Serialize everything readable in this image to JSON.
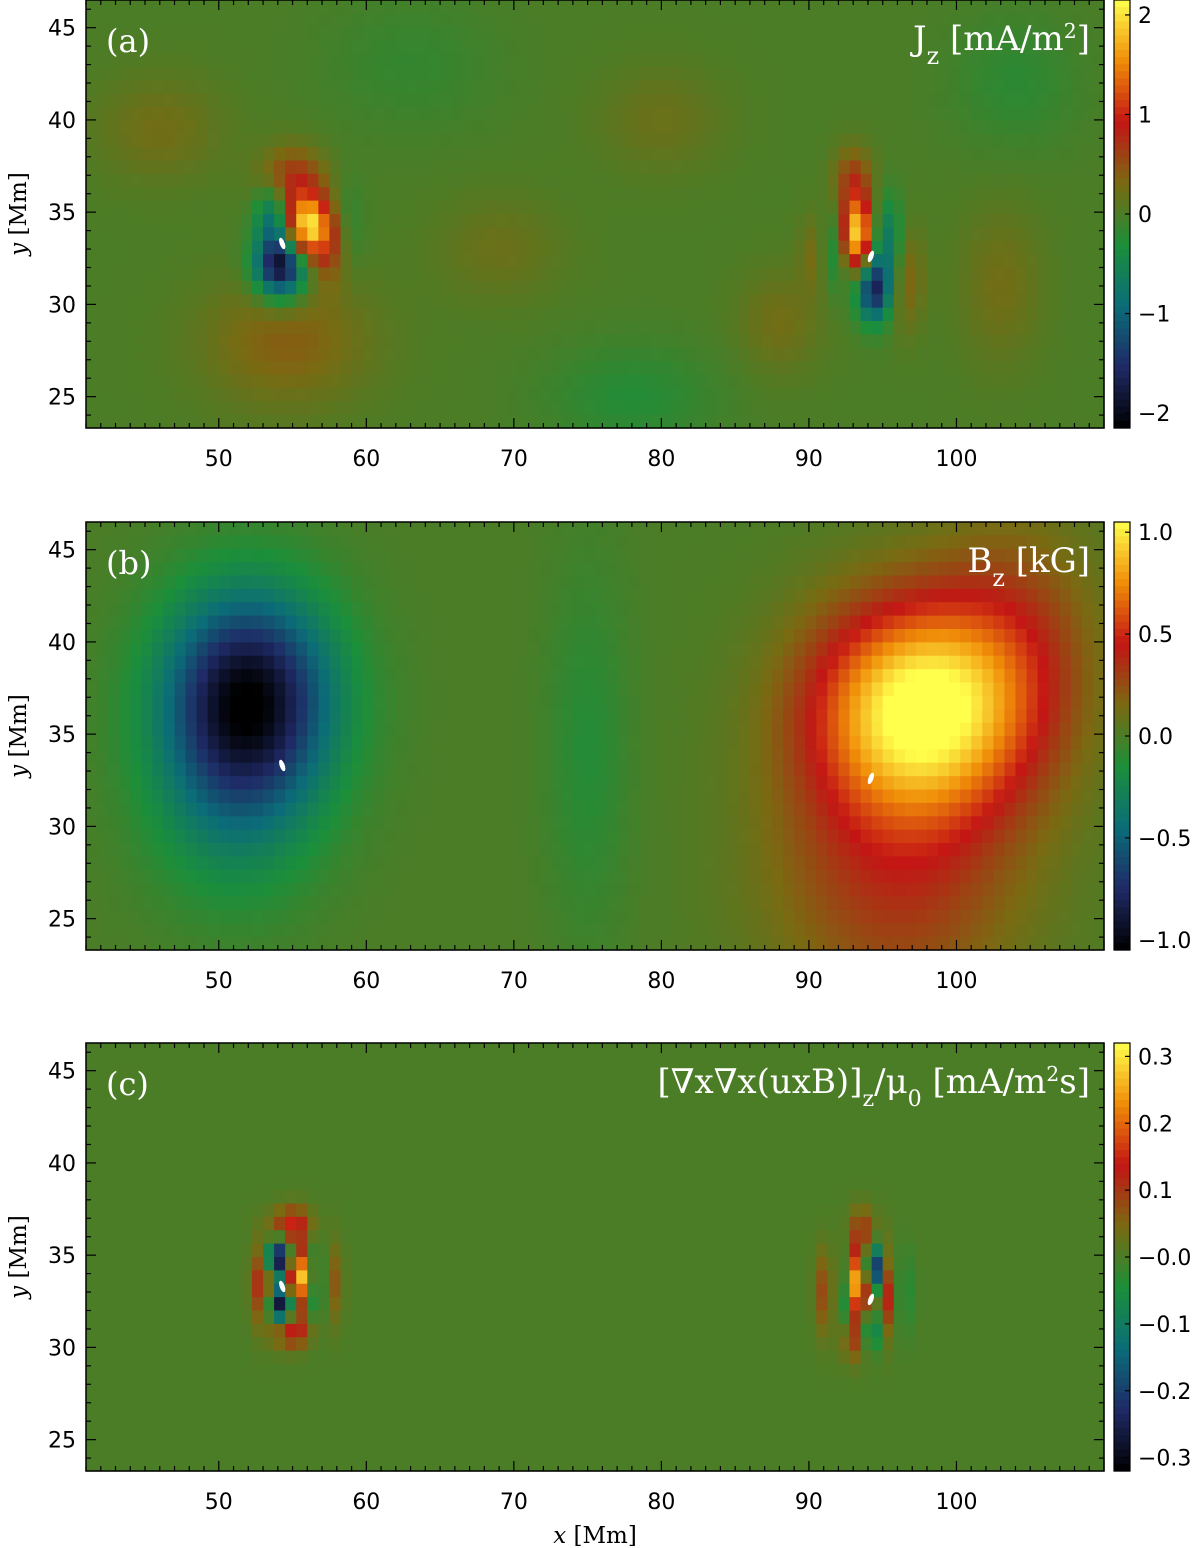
{
  "chart_data": [
    {
      "type": "heatmap",
      "panel_label": "(a)",
      "quantity_label": "J_z [mA/m²]",
      "xlim": [
        41,
        110
      ],
      "ylim": [
        23.3,
        46.5
      ],
      "x_ticks": [
        50,
        60,
        70,
        80,
        90,
        100
      ],
      "y_ticks": [
        25,
        30,
        35,
        40,
        45
      ],
      "xlabel": "",
      "ylabel": "y [Mm]",
      "colorbar": {
        "range": [
          -2.15,
          2.15
        ],
        "ticks": [
          "2",
          "1",
          "0",
          "−1",
          "−2"
        ],
        "tick_values": [
          2,
          1,
          0,
          -1,
          -2
        ]
      },
      "features": [
        {
          "x": 56.0,
          "y": 34.2,
          "value": 2.0,
          "sx": 1.0,
          "sy": 1.2
        },
        {
          "x": 54.2,
          "y": 32.1,
          "value": -2.0,
          "sx": 1.2,
          "sy": 1.2
        },
        {
          "x": 55.0,
          "y": 36.8,
          "value": 0.7,
          "sx": 1.5,
          "sy": 1.2
        },
        {
          "x": 53.6,
          "y": 34.8,
          "value": -0.8,
          "sx": 0.8,
          "sy": 1.2
        },
        {
          "x": 57.6,
          "y": 33.2,
          "value": 0.6,
          "sx": 0.9,
          "sy": 1.5
        },
        {
          "x": 58.6,
          "y": 34.0,
          "value": -0.3,
          "sx": 0.8,
          "sy": 1.8
        },
        {
          "x": 54.6,
          "y": 28.0,
          "value": 0.4,
          "sx": 4.0,
          "sy": 2.5
        },
        {
          "x": 93.3,
          "y": 33.8,
          "value": 2.0,
          "sx": 0.8,
          "sy": 1.4
        },
        {
          "x": 94.4,
          "y": 30.8,
          "value": -1.6,
          "sx": 0.8,
          "sy": 1.2
        },
        {
          "x": 95.2,
          "y": 33.5,
          "value": -0.8,
          "sx": 0.8,
          "sy": 1.6
        },
        {
          "x": 93.0,
          "y": 36.8,
          "value": 0.6,
          "sx": 0.9,
          "sy": 1.2
        },
        {
          "x": 91.8,
          "y": 33.0,
          "value": -0.5,
          "sx": 0.7,
          "sy": 1.5
        },
        {
          "x": 96.6,
          "y": 31.5,
          "value": 0.4,
          "sx": 0.8,
          "sy": 2.0
        },
        {
          "x": 90.4,
          "y": 32.8,
          "value": 0.3,
          "sx": 0.7,
          "sy": 1.5
        },
        {
          "x": 46.0,
          "y": 39.5,
          "value": 0.25,
          "sx": 3.0,
          "sy": 2.0
        },
        {
          "x": 69.0,
          "y": 33.0,
          "value": 0.2,
          "sx": 3.0,
          "sy": 2.0
        },
        {
          "x": 80.0,
          "y": 40.0,
          "value": 0.2,
          "sx": 3.0,
          "sy": 2.0
        },
        {
          "x": 103.0,
          "y": 31.0,
          "value": 0.25,
          "sx": 2.0,
          "sy": 3.0
        },
        {
          "x": 104.0,
          "y": 42.0,
          "value": -0.2,
          "sx": 3.0,
          "sy": 2.5
        },
        {
          "x": 78.0,
          "y": 25.0,
          "value": -0.25,
          "sx": 4.0,
          "sy": 2.0
        },
        {
          "x": 88.0,
          "y": 29.0,
          "value": 0.25,
          "sx": 2.0,
          "sy": 2.0
        },
        {
          "x": 63.0,
          "y": 43.0,
          "value": -0.15,
          "sx": 4.0,
          "sy": 2.5
        }
      ]
    },
    {
      "type": "heatmap",
      "panel_label": "(b)",
      "quantity_label": "B_z [kG]",
      "xlim": [
        41,
        110
      ],
      "ylim": [
        23.3,
        46.5
      ],
      "x_ticks": [
        50,
        60,
        70,
        80,
        90,
        100
      ],
      "y_ticks": [
        25,
        30,
        35,
        40,
        45
      ],
      "xlabel": "",
      "ylabel": "y [Mm]",
      "colorbar": {
        "range": [
          -1.05,
          1.05
        ],
        "ticks": [
          "1.0",
          "0.5",
          "0.0",
          "−0.5",
          "−1.0"
        ],
        "tick_values": [
          1.0,
          0.5,
          0.0,
          -0.5,
          -1.0
        ]
      },
      "features": [
        {
          "x": 52.0,
          "y": 37.0,
          "value": -1.0,
          "sx": 4.0,
          "sy": 4.0
        },
        {
          "x": 51.0,
          "y": 31.0,
          "value": -0.25,
          "sx": 4.0,
          "sy": 4.0
        },
        {
          "x": 97.5,
          "y": 36.5,
          "value": 1.0,
          "sx": 5.0,
          "sy": 4.0
        },
        {
          "x": 96.0,
          "y": 28.0,
          "value": 0.35,
          "sx": 6.0,
          "sy": 6.0
        },
        {
          "x": 104.0,
          "y": 40.0,
          "value": 0.25,
          "sx": 4.0,
          "sy": 5.0
        },
        {
          "x": 75.0,
          "y": 34.0,
          "value": -0.12,
          "sx": 2.0,
          "sy": 7.0
        }
      ]
    },
    {
      "type": "heatmap",
      "panel_label": "(c)",
      "quantity_label": "[∇x∇x(uxB)]_z/μ₀ [mA/m²s]",
      "xlim": [
        41,
        110
      ],
      "ylim": [
        23.3,
        46.5
      ],
      "x_ticks": [
        50,
        60,
        70,
        80,
        90,
        100
      ],
      "y_ticks": [
        25,
        30,
        35,
        40,
        45
      ],
      "xlabel": "x [Mm]",
      "ylabel": "y [Mm]",
      "colorbar": {
        "range": [
          -0.32,
          0.32
        ],
        "ticks": [
          "0.3",
          "0.2",
          "0.1",
          "−0.0",
          "−0.1",
          "−0.2",
          "−0.3"
        ],
        "tick_values": [
          0.3,
          0.2,
          0.1,
          0.0,
          -0.1,
          -0.2,
          -0.3
        ]
      },
      "features": [
        {
          "x": 55.5,
          "y": 33.8,
          "value": 0.3,
          "sx": 0.6,
          "sy": 1.0
        },
        {
          "x": 54.0,
          "y": 34.8,
          "value": -0.3,
          "sx": 0.6,
          "sy": 0.7
        },
        {
          "x": 54.2,
          "y": 32.3,
          "value": -0.3,
          "sx": 0.6,
          "sy": 0.7
        },
        {
          "x": 55.0,
          "y": 36.6,
          "value": 0.15,
          "sx": 0.9,
          "sy": 0.7
        },
        {
          "x": 55.0,
          "y": 31.0,
          "value": 0.15,
          "sx": 0.9,
          "sy": 0.7
        },
        {
          "x": 53.0,
          "y": 33.5,
          "value": 0.15,
          "sx": 0.5,
          "sy": 1.5
        },
        {
          "x": 56.6,
          "y": 33.5,
          "value": -0.12,
          "sx": 0.5,
          "sy": 1.5
        },
        {
          "x": 57.6,
          "y": 33.5,
          "value": 0.08,
          "sx": 0.5,
          "sy": 1.5
        },
        {
          "x": 93.3,
          "y": 33.5,
          "value": 0.3,
          "sx": 0.6,
          "sy": 1.2
        },
        {
          "x": 94.4,
          "y": 34.2,
          "value": -0.3,
          "sx": 0.5,
          "sy": 0.9
        },
        {
          "x": 92.3,
          "y": 33.0,
          "value": -0.12,
          "sx": 0.5,
          "sy": 1.5
        },
        {
          "x": 95.3,
          "y": 33.0,
          "value": 0.15,
          "sx": 0.5,
          "sy": 1.6
        },
        {
          "x": 93.6,
          "y": 36.3,
          "value": 0.1,
          "sx": 0.6,
          "sy": 0.9
        },
        {
          "x": 93.0,
          "y": 30.5,
          "value": 0.1,
          "sx": 0.6,
          "sy": 0.9
        },
        {
          "x": 94.3,
          "y": 31.0,
          "value": -0.12,
          "sx": 0.5,
          "sy": 0.8
        },
        {
          "x": 91.2,
          "y": 33.0,
          "value": 0.1,
          "sx": 0.5,
          "sy": 1.6
        },
        {
          "x": 96.3,
          "y": 33.0,
          "value": -0.06,
          "sx": 0.5,
          "sy": 1.6
        }
      ]
    }
  ],
  "colors": {
    "colormap": [
      "#000000",
      "#1f2a66",
      "#0b6d78",
      "#1c8f3a",
      "#7a6a12",
      "#c41515",
      "#f08d08",
      "#ffff4c"
    ],
    "contour": "#ffffff"
  }
}
